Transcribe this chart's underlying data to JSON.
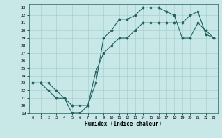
{
  "xlabel": "Humidex (Indice chaleur)",
  "bg_color": "#c8e8e8",
  "grid_color": "#a8d0d0",
  "line_color": "#206060",
  "xlim": [
    -0.5,
    23.5
  ],
  "ylim": [
    19,
    33.5
  ],
  "xticks": [
    0,
    1,
    2,
    3,
    4,
    5,
    6,
    7,
    8,
    9,
    10,
    11,
    12,
    13,
    14,
    15,
    16,
    17,
    18,
    19,
    20,
    21,
    22,
    23
  ],
  "yticks": [
    19,
    20,
    21,
    22,
    23,
    24,
    25,
    26,
    27,
    28,
    29,
    30,
    31,
    32,
    33
  ],
  "line1_x": [
    0,
    1,
    2,
    3,
    4,
    5,
    6,
    7,
    8,
    9,
    10,
    11,
    12,
    13,
    14,
    15,
    16,
    17,
    18,
    19,
    20,
    21,
    22,
    23
  ],
  "line1_y": [
    23,
    23,
    23,
    22,
    21,
    19,
    19,
    20,
    23,
    29,
    30,
    31.5,
    31.5,
    32,
    33,
    33,
    33,
    32.5,
    32,
    29,
    29,
    31,
    30,
    29
  ],
  "line2_x": [
    0,
    1,
    2,
    3,
    4,
    5,
    6,
    7,
    8,
    9,
    10,
    11,
    12,
    13,
    14,
    15,
    16,
    17,
    18,
    19,
    20,
    21,
    22,
    23
  ],
  "line2_y": [
    23,
    23,
    22,
    21,
    21,
    20,
    20,
    20,
    24.5,
    27,
    28,
    29,
    29,
    30,
    31,
    31,
    31,
    31,
    31,
    31,
    32,
    32.5,
    29.5,
    29
  ]
}
